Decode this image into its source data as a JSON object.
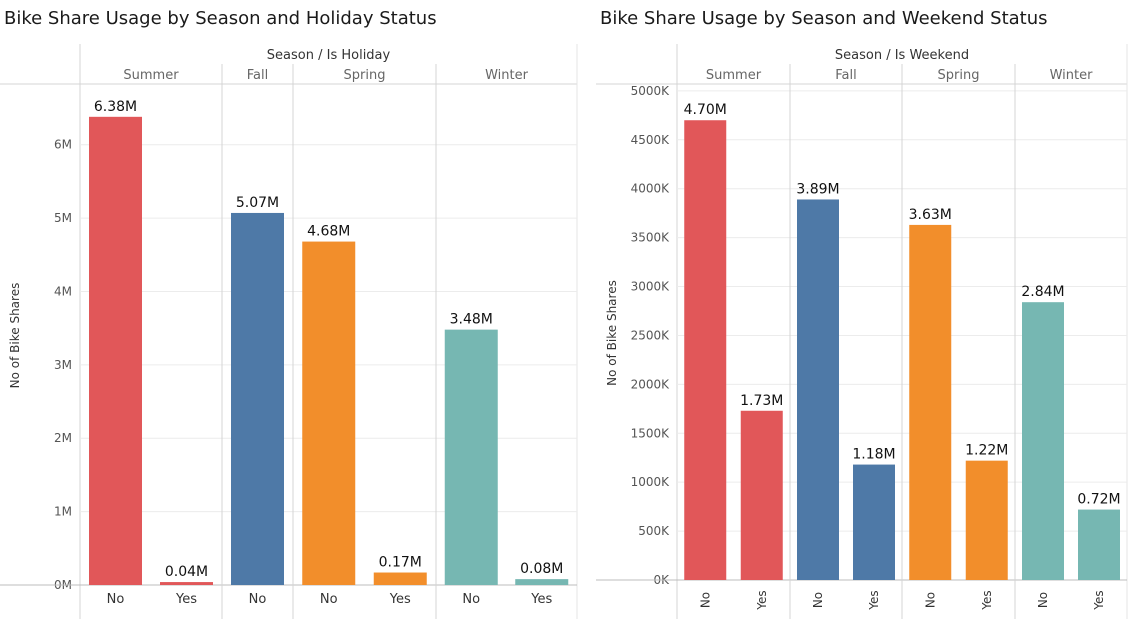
{
  "chart_data": [
    {
      "type": "bar",
      "title": "Bike Share Usage by Season and Holiday Status",
      "header_label": "Season / Is Holiday",
      "ylabel": "No of Bike Shares",
      "ylim": [
        0,
        6800000
      ],
      "yticks": [
        0,
        1000000,
        2000000,
        3000000,
        4000000,
        5000000,
        6000000
      ],
      "ytick_labels": [
        "0M",
        "1M",
        "2M",
        "3M",
        "4M",
        "5M",
        "6M"
      ],
      "groups": [
        {
          "name": "Summer",
          "color": "#e15759",
          "bars": [
            {
              "category": "No",
              "value": 6380000,
              "label": "6.38M"
            },
            {
              "category": "Yes",
              "value": 40000,
              "label": "0.04M"
            }
          ]
        },
        {
          "name": "Fall",
          "color": "#4e79a7",
          "bars": [
            {
              "category": "No",
              "value": 5070000,
              "label": "5.07M"
            }
          ]
        },
        {
          "name": "Spring",
          "color": "#f28e2b",
          "bars": [
            {
              "category": "No",
              "value": 4680000,
              "label": "4.68M"
            },
            {
              "category": "Yes",
              "value": 170000,
              "label": "0.17M"
            }
          ]
        },
        {
          "name": "Winter",
          "color": "#76b7b2",
          "bars": [
            {
              "category": "No",
              "value": 3480000,
              "label": "3.48M"
            },
            {
              "category": "Yes",
              "value": 80000,
              "label": "0.08M"
            }
          ]
        }
      ],
      "grid": true,
      "rotate_x_labels": false
    },
    {
      "type": "bar",
      "title": "Bike Share Usage by Season and Weekend Status",
      "header_label": "Season / Is Weekend",
      "ylabel": "No of Bike Shares",
      "ylim": [
        0,
        5050000
      ],
      "yticks": [
        0,
        500000,
        1000000,
        1500000,
        2000000,
        2500000,
        3000000,
        3500000,
        4000000,
        4500000,
        5000000
      ],
      "ytick_labels": [
        "0K",
        "500K",
        "1000K",
        "1500K",
        "2000K",
        "2500K",
        "3000K",
        "3500K",
        "4000K",
        "4500K",
        "5000K"
      ],
      "groups": [
        {
          "name": "Summer",
          "color": "#e15759",
          "bars": [
            {
              "category": "No",
              "value": 4700000,
              "label": "4.70M"
            },
            {
              "category": "Yes",
              "value": 1730000,
              "label": "1.73M"
            }
          ]
        },
        {
          "name": "Fall",
          "color": "#4e79a7",
          "bars": [
            {
              "category": "No",
              "value": 3890000,
              "label": "3.89M"
            },
            {
              "category": "Yes",
              "value": 1180000,
              "label": "1.18M"
            }
          ]
        },
        {
          "name": "Spring",
          "color": "#f28e2b",
          "bars": [
            {
              "category": "No",
              "value": 3630000,
              "label": "3.63M"
            },
            {
              "category": "Yes",
              "value": 1220000,
              "label": "1.22M"
            }
          ]
        },
        {
          "name": "Winter",
          "color": "#76b7b2",
          "bars": [
            {
              "category": "No",
              "value": 2840000,
              "label": "2.84M"
            },
            {
              "category": "Yes",
              "value": 720000,
              "label": "0.72M"
            }
          ]
        }
      ],
      "grid": true,
      "rotate_x_labels": true
    }
  ]
}
